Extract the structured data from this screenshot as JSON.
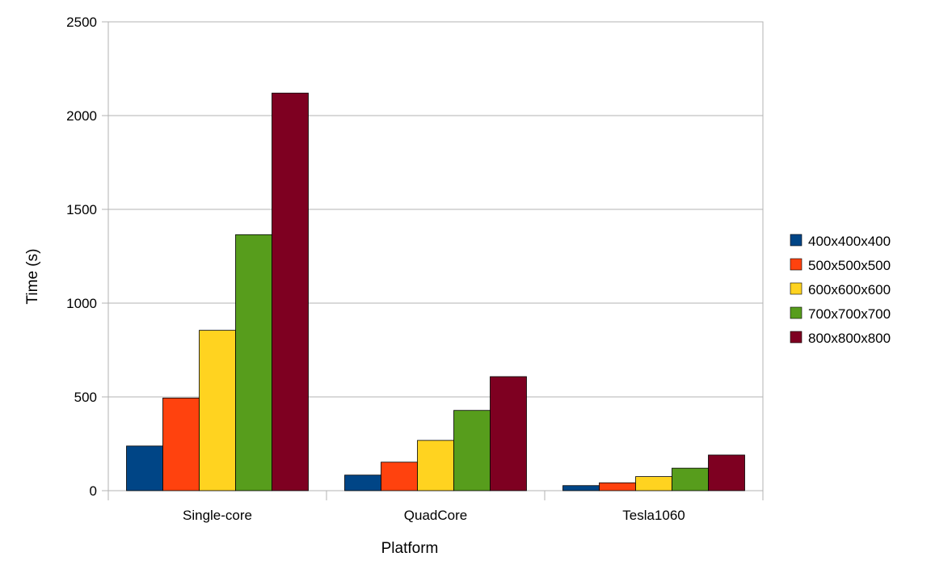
{
  "chart_data": {
    "type": "bar",
    "title": "",
    "xlabel": "Platform",
    "ylabel": "Time (s)",
    "ylim": [
      0,
      2500
    ],
    "yticks": [
      0,
      500,
      1000,
      1500,
      2000,
      2500
    ],
    "grid": true,
    "legend_position": "right",
    "categories": [
      "Single-core",
      "QuadCore",
      "Tesla1060"
    ],
    "series": [
      {
        "name": "400x400x400",
        "color": "#004586",
        "values": [
          238,
          83,
          27
        ]
      },
      {
        "name": "500x500x500",
        "color": "#ff420e",
        "values": [
          494,
          152,
          42
        ]
      },
      {
        "name": "600x600x600",
        "color": "#ffd320",
        "values": [
          855,
          268,
          75
        ]
      },
      {
        "name": "700x700x700",
        "color": "#579d1c",
        "values": [
          1365,
          428,
          120
        ]
      },
      {
        "name": "800x800x800",
        "color": "#7e0021",
        "values": [
          2120,
          608,
          190
        ]
      }
    ]
  }
}
